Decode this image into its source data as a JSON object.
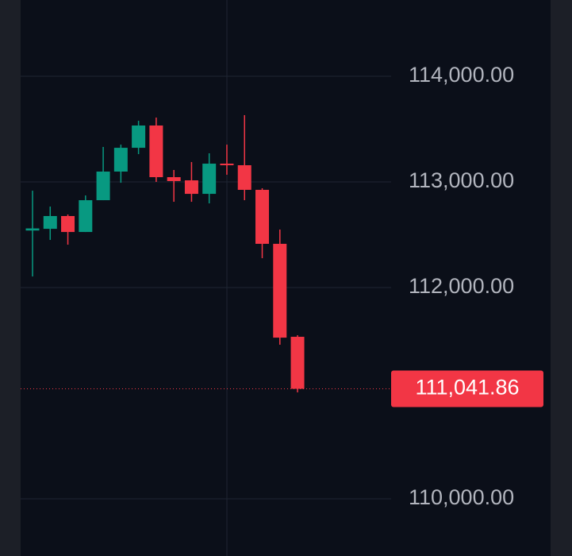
{
  "chart_data": {
    "type": "candlestick",
    "open": [
      112540,
      112556,
      112677,
      112526,
      112827,
      113098,
      113323,
      113534,
      113045,
      113015,
      112887,
      113173,
      113158,
      112925,
      112414,
      111534
    ],
    "high": [
      112917,
      112767,
      112692,
      112872,
      113331,
      113353,
      113579,
      113609,
      113113,
      113188,
      113271,
      113353,
      113632,
      112940,
      112549,
      111549
    ],
    "low": [
      112105,
      112451,
      112406,
      112526,
      112827,
      112992,
      113263,
      113000,
      112812,
      112812,
      112797,
      113068,
      112827,
      112278,
      111459,
      111008
    ],
    "close": [
      112560,
      112677,
      112526,
      112827,
      113098,
      113323,
      113534,
      113045,
      113008,
      112887,
      113173,
      113158,
      112925,
      112414,
      111526,
      111041.86
    ],
    "up_color": "#089981",
    "down_color": "#f23645",
    "ylim": [
      109459,
      114722
    ],
    "yticks": [
      {
        "value": 110000,
        "label": "110,000.00"
      },
      {
        "value": 112000,
        "label": "112,000.00"
      },
      {
        "value": 113000,
        "label": "113,000.00"
      },
      {
        "value": 114000,
        "label": "114,000.00"
      }
    ],
    "last_price": {
      "value": 111041.86,
      "label": "111,041.86"
    },
    "grid": true
  }
}
